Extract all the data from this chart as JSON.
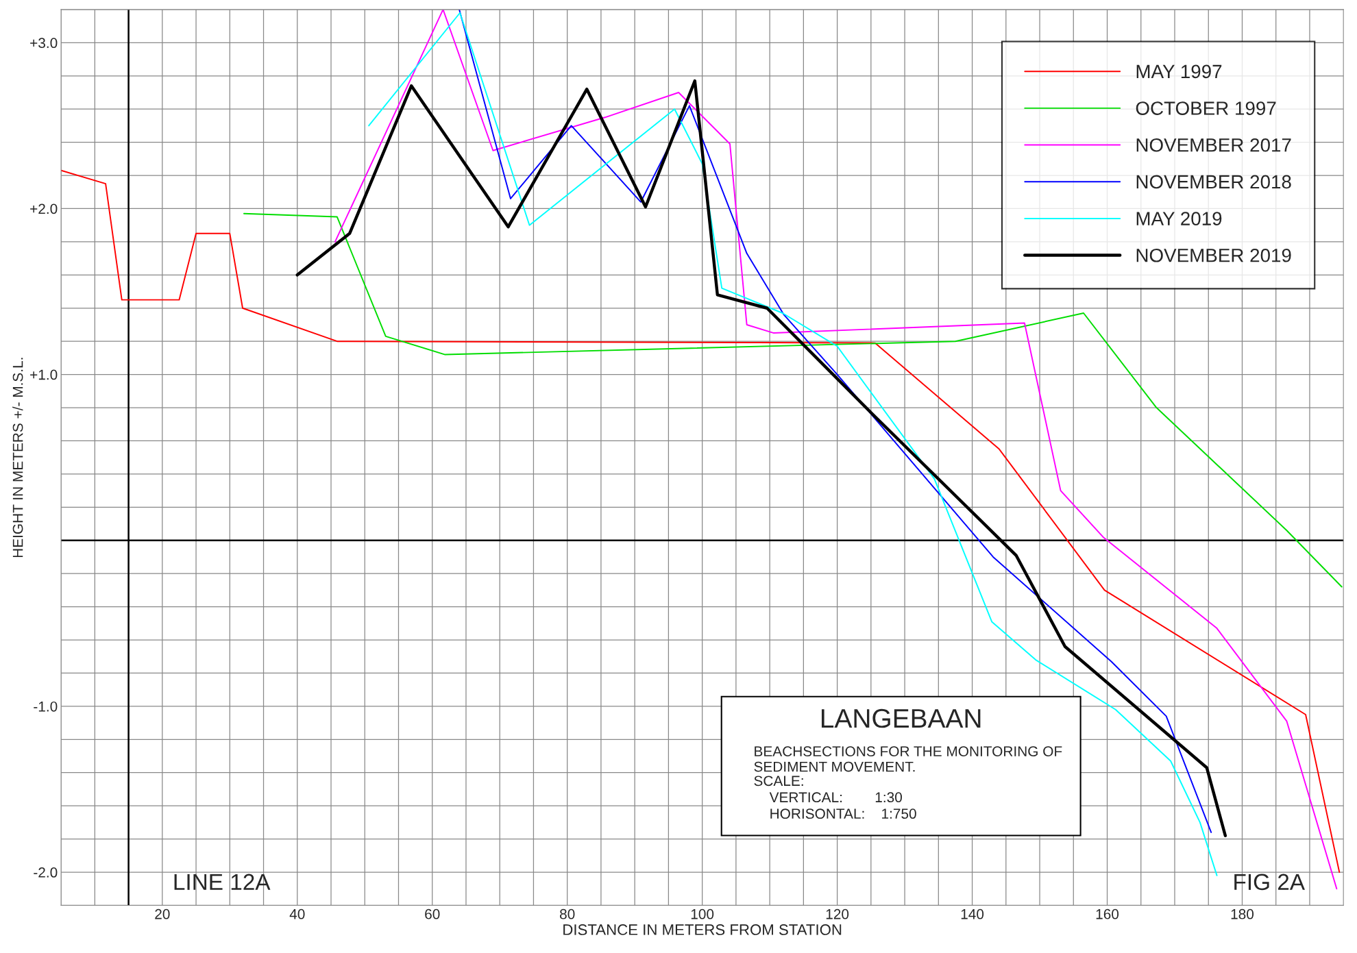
{
  "chart_data": {
    "type": "line",
    "title": "LANGEBAAN",
    "subtitle": "BEACHSECTIONS FOR THE MONITORING OF\nSEDIMENT MOVEMENT.",
    "xlabel": "DISTANCE IN METERS FROM STATION",
    "ylabel": "HEIGHT IN METERS +/- M.S.L.",
    "annotations": [
      "SCALE:\n    VERTICAL:        1:30\n    HORISONTAL:    1:750",
      "LINE 12A",
      "FIG 2A"
    ],
    "xlim": [
      5,
      195
    ],
    "ylim": [
      -2.2,
      3.2
    ],
    "xticks": [
      {
        "value": 5,
        "label": null
      },
      {
        "value": 10,
        "label": null
      },
      20,
      {
        "value": 25,
        "label": null
      },
      {
        "value": 30,
        "label": null
      },
      {
        "value": 35,
        "label": null
      },
      40,
      {
        "value": 45,
        "label": null
      },
      {
        "value": 50,
        "label": null
      },
      {
        "value": 55,
        "label": null
      },
      60,
      {
        "value": 65,
        "label": null
      },
      {
        "value": 70,
        "label": null
      },
      {
        "value": 75,
        "label": null
      },
      80,
      {
        "value": 85,
        "label": null
      },
      {
        "value": 90,
        "label": null
      },
      {
        "value": 95,
        "label": null
      },
      100,
      {
        "value": 105,
        "label": null
      },
      {
        "value": 110,
        "label": null
      },
      {
        "value": 115,
        "label": null
      },
      120,
      {
        "value": 125,
        "label": null
      },
      {
        "value": 130,
        "label": null
      },
      {
        "value": 135,
        "label": null
      },
      140,
      {
        "value": 145,
        "label": null
      },
      {
        "value": 150,
        "label": null
      },
      {
        "value": 155,
        "label": null
      },
      160,
      {
        "value": 165,
        "label": null
      },
      {
        "value": 170,
        "label": null
      },
      {
        "value": 175,
        "label": null
      },
      180,
      {
        "value": 185,
        "label": null
      },
      {
        "value": 190,
        "label": null
      }
    ],
    "yticks": [
      {
        "value": -2.2,
        "label": null
      },
      {
        "value": -2.0,
        "label": "-2.0"
      },
      {
        "value": -1.8,
        "label": null
      },
      {
        "value": -1.6,
        "label": null
      },
      {
        "value": -1.4,
        "label": null
      },
      {
        "value": -1.2,
        "label": null
      },
      {
        "value": -1.0,
        "label": "-1.0"
      },
      {
        "value": -0.8,
        "label": null
      },
      {
        "value": -0.6,
        "label": null
      },
      {
        "value": -0.4,
        "label": null
      },
      {
        "value": -0.2,
        "label": null
      },
      {
        "value": 0.2,
        "label": null
      },
      {
        "value": 0.4,
        "label": null
      },
      {
        "value": 0.6,
        "label": null
      },
      {
        "value": 0.8,
        "label": null
      },
      {
        "value": 1.0,
        "label": "+1.0"
      },
      {
        "value": 1.2,
        "label": null
      },
      {
        "value": 1.4,
        "label": null
      },
      {
        "value": 1.6,
        "label": null
      },
      {
        "value": 1.8,
        "label": null
      },
      {
        "value": 2.0,
        "label": "+2.0"
      },
      {
        "value": 2.2,
        "label": null
      },
      {
        "value": 2.4,
        "label": null
      },
      {
        "value": 2.6,
        "label": null
      },
      {
        "value": 2.8,
        "label": null
      },
      {
        "value": 3.0,
        "label": "+3.0"
      },
      {
        "value": 3.2,
        "label": null
      }
    ],
    "grid": true,
    "legend": "top right",
    "ref_lines": [
      {
        "axis": "y",
        "value": 0,
        "label": null,
        "color": "#000000"
      },
      {
        "axis": "x",
        "value": 15,
        "label": null,
        "color": "#000000"
      }
    ],
    "series": [
      {
        "name": "MAY 1997",
        "color": "#ff0000",
        "x": [
          5,
          11.6,
          14,
          22.5,
          25,
          30,
          31.9,
          45.9,
          125.6,
          144,
          159.6,
          189.4,
          194.4
        ],
        "values": [
          2.23,
          2.15,
          1.45,
          1.45,
          1.85,
          1.85,
          1.4,
          1.2,
          1.19,
          0.55,
          -0.3,
          -1.05,
          -2.0
        ]
      },
      {
        "name": "OCTOBER 1997",
        "color": "#00dd00",
        "x": [
          32.1,
          45.9,
          53.1,
          61.9,
          137.5,
          156.5,
          167.3,
          186.6,
          194.75
        ],
        "values": [
          1.97,
          1.95,
          1.23,
          1.12,
          1.2,
          1.37,
          0.8,
          0.06,
          -0.28
        ]
      },
      {
        "name": "NOVEMBER 2017",
        "color": "#ff00ff",
        "x": [
          45.6,
          61.6,
          69,
          85.6,
          96.5,
          104.1,
          106.6,
          110.6,
          147.75,
          153.1,
          159.4,
          176.25,
          186.6,
          194
        ],
        "values": [
          1.8,
          3.2,
          2.35,
          2.55,
          2.7,
          2.39,
          1.3,
          1.25,
          1.31,
          0.3,
          0.02,
          -0.53,
          -1.09,
          -2.1
        ]
      },
      {
        "name": "NOVEMBER 2018",
        "color": "#0000ff",
        "x": [
          64,
          71.6,
          80.6,
          90.9,
          98.1,
          106.6,
          112.1,
          120,
          143.1,
          160.6,
          168.75,
          175.4
        ],
        "values": [
          3.2,
          2.06,
          2.5,
          2.04,
          2.62,
          1.73,
          1.36,
          1.0,
          -0.1,
          -0.73,
          -1.06,
          -1.76
        ]
      },
      {
        "name": "MAY 2019",
        "color": "#00ffff",
        "x": [
          50.6,
          64.1,
          74.4,
          95.9,
          100,
          102.9,
          111.9,
          120,
          134.4,
          142.9,
          149.4,
          161.25,
          169.4,
          173.75,
          176.25
        ],
        "values": [
          2.5,
          3.18,
          1.9,
          2.6,
          2.27,
          1.52,
          1.37,
          1.17,
          0.37,
          -0.49,
          -0.72,
          -1.02,
          -1.33,
          -1.7,
          -2.02
        ]
      },
      {
        "name": "NOVEMBER 2019",
        "color": "#000000",
        "x": [
          40,
          47.75,
          56.9,
          71.25,
          82.9,
          91.6,
          98.9,
          102.25,
          109.6,
          125,
          146.5,
          153.75,
          174.75,
          177.5
        ],
        "values": [
          1.6,
          1.85,
          2.74,
          1.89,
          2.72,
          2.01,
          2.77,
          1.48,
          1.4,
          0.77,
          -0.09,
          -0.64,
          -1.37,
          -1.78
        ]
      }
    ]
  }
}
